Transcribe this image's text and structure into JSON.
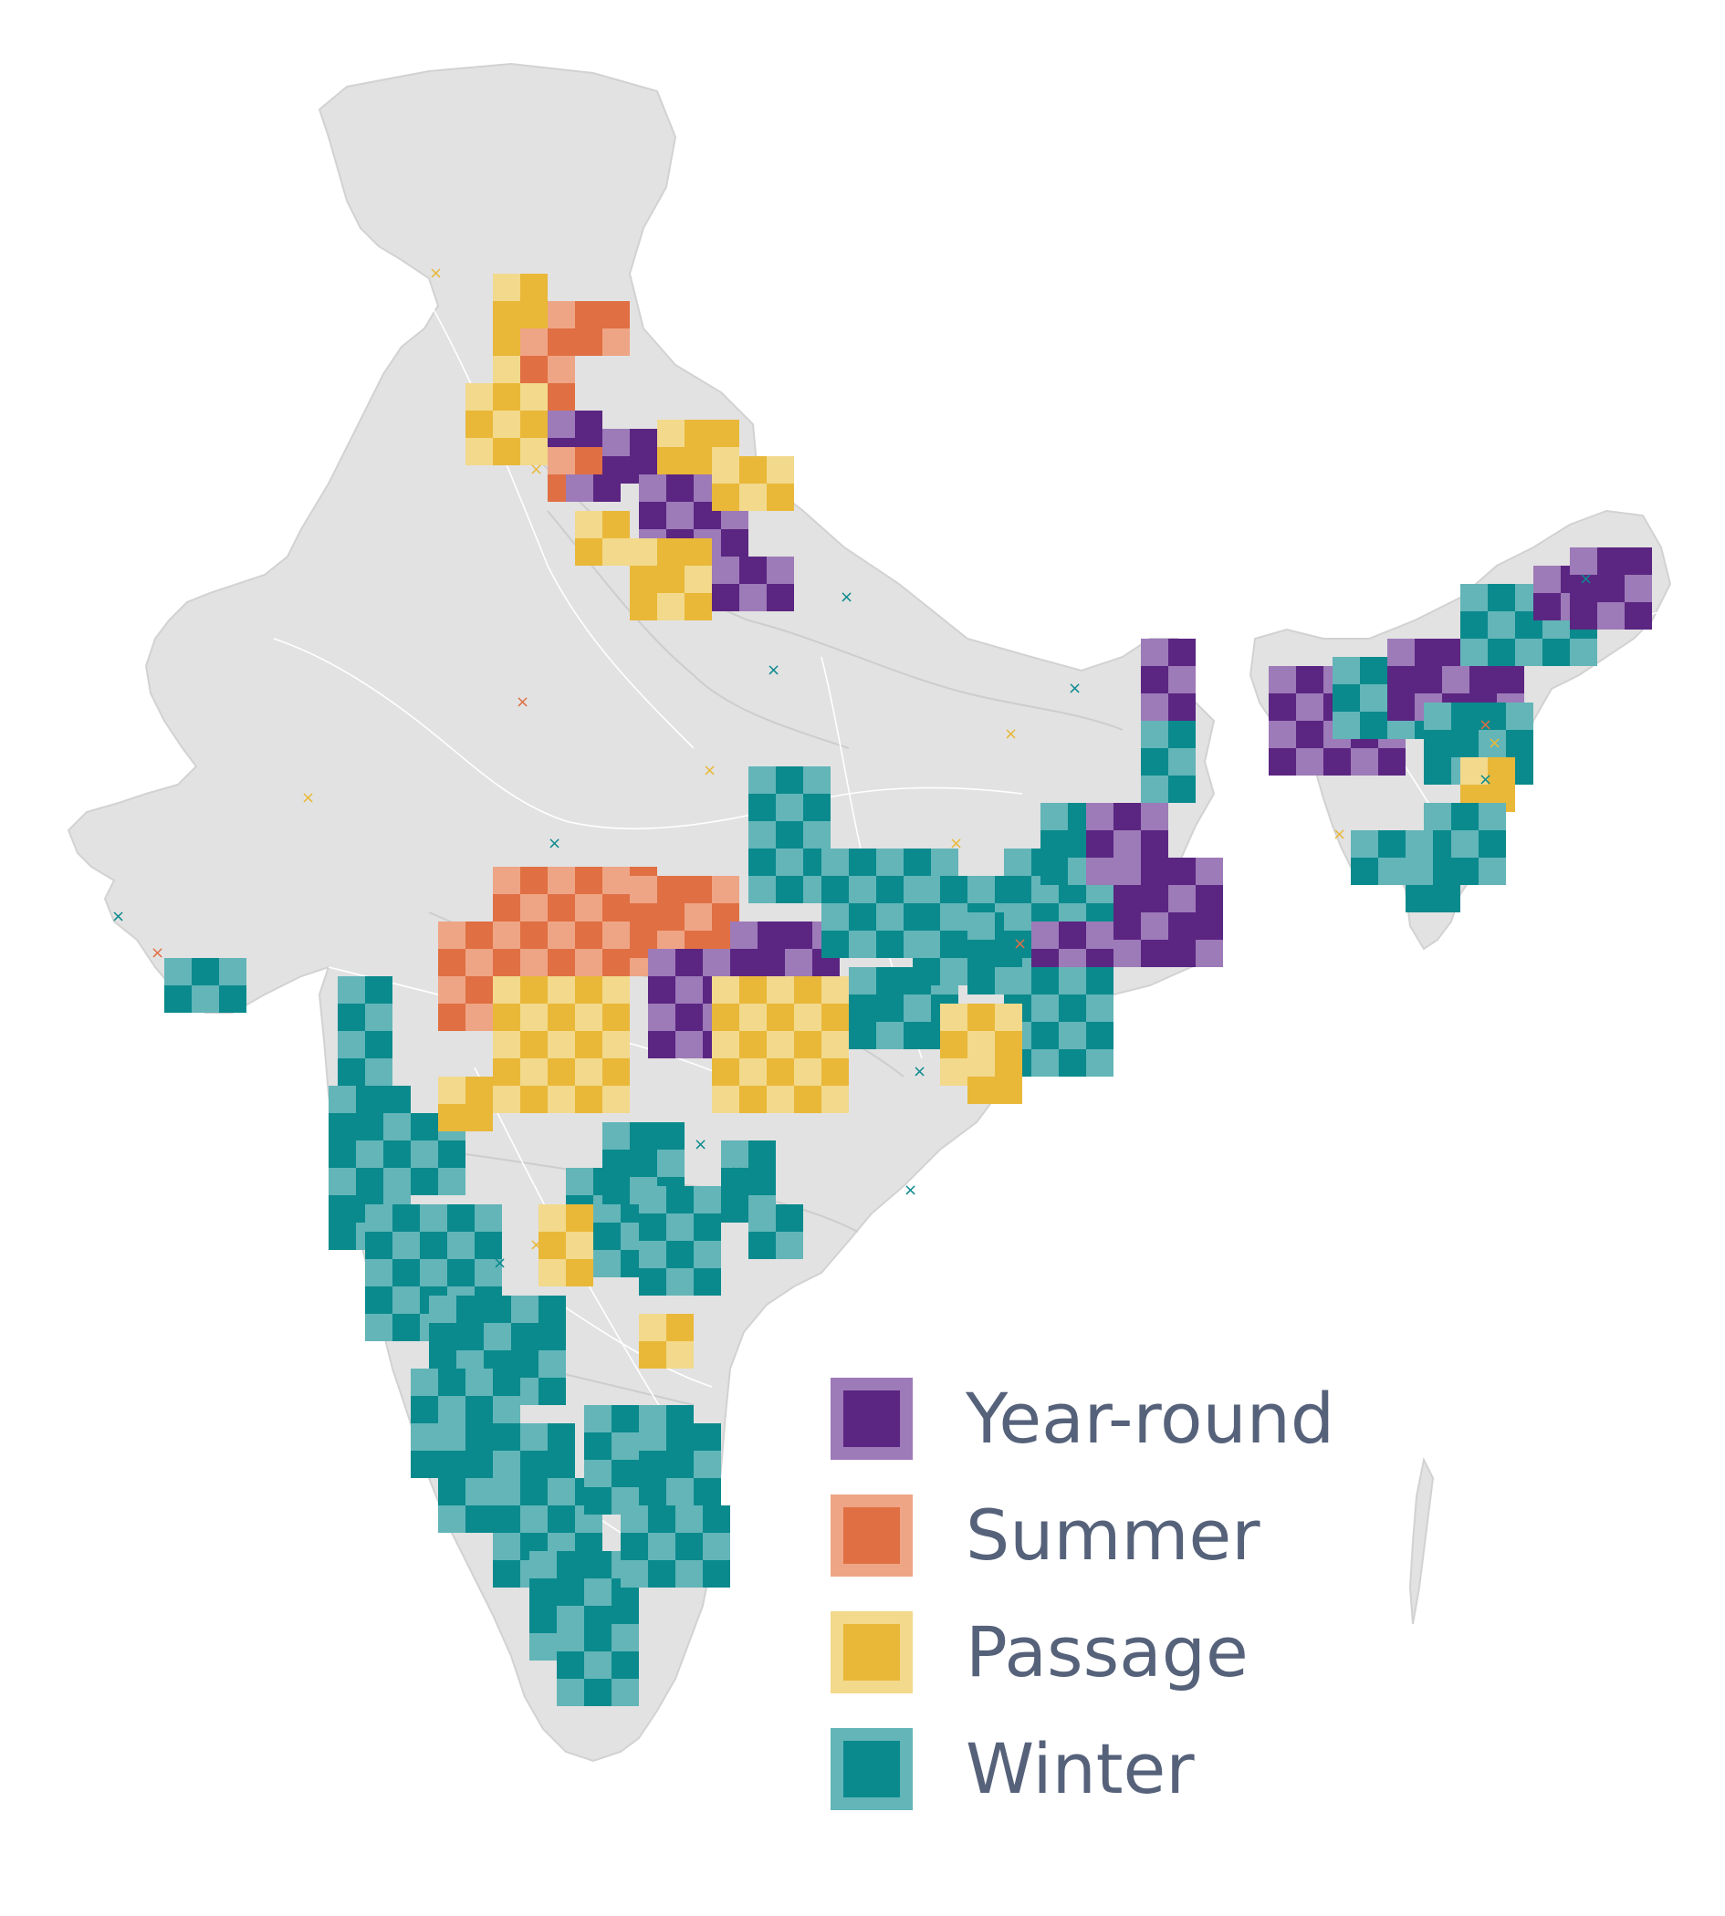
{
  "colors": {
    "land": "#e2e2e2",
    "border": "#ffffff",
    "river": "#c9c9c9"
  },
  "legend": {
    "items": [
      {
        "key": "year-round",
        "label": "Year-round",
        "fill": "#5b2582",
        "edge": "#9d7ab8"
      },
      {
        "key": "summer",
        "label": "Summer",
        "fill": "#e06f43",
        "edge": "#eea585"
      },
      {
        "key": "passage",
        "label": "Passage",
        "fill": "#e9b838",
        "edge": "#f2d98c"
      },
      {
        "key": "winter",
        "label": "Winter",
        "fill": "#0a8a8d",
        "edge": "#63b5b8"
      }
    ]
  },
  "symbols": {
    "edge_colors": {
      "year-round": "#9d7ab8",
      "summer": "#eea585",
      "passage": "#f2d98c",
      "winter": "#63b5b8"
    },
    "fill_colors": {
      "year-round": "#5b2582",
      "summer": "#e06f43",
      "passage": "#e9b838",
      "winter": "#0a8a8d"
    },
    "marker": "x-mark-icon"
  }
}
